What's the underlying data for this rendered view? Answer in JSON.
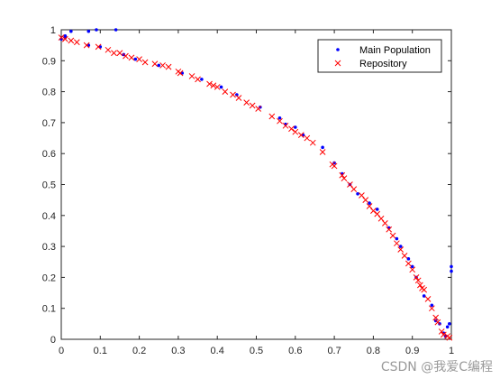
{
  "chart_data": {
    "type": "scatter",
    "title": "",
    "xlabel": "",
    "ylabel": "",
    "xlim": [
      0,
      1
    ],
    "ylim": [
      0,
      1
    ],
    "xticks": [
      "0",
      "0.1",
      "0.2",
      "0.3",
      "0.4",
      "0.5",
      "0.6",
      "0.7",
      "0.8",
      "0.9",
      "1"
    ],
    "yticks": [
      "0",
      "0.1",
      "0.2",
      "0.3",
      "0.4",
      "0.5",
      "0.6",
      "0.7",
      "0.8",
      "0.9",
      "1"
    ],
    "grid": false,
    "legend_position": "top-right",
    "series": [
      {
        "name": "Main Population",
        "marker": "dot",
        "color": "#0000ff",
        "points": [
          [
            0.0,
            0.97
          ],
          [
            0.01,
            0.98
          ],
          [
            0.025,
            0.995
          ],
          [
            0.07,
            0.995
          ],
          [
            0.09,
            1.0
          ],
          [
            0.14,
            1.0
          ],
          [
            0.01,
            0.975
          ],
          [
            0.07,
            0.95
          ],
          [
            0.1,
            0.945
          ],
          [
            0.16,
            0.92
          ],
          [
            0.19,
            0.905
          ],
          [
            0.25,
            0.885
          ],
          [
            0.31,
            0.86
          ],
          [
            0.36,
            0.84
          ],
          [
            0.41,
            0.815
          ],
          [
            0.45,
            0.79
          ],
          [
            0.51,
            0.75
          ],
          [
            0.56,
            0.715
          ],
          [
            0.575,
            0.695
          ],
          [
            0.6,
            0.685
          ],
          [
            0.62,
            0.66
          ],
          [
            0.67,
            0.62
          ],
          [
            0.7,
            0.57
          ],
          [
            0.72,
            0.535
          ],
          [
            0.74,
            0.5
          ],
          [
            0.76,
            0.47
          ],
          [
            0.79,
            0.44
          ],
          [
            0.81,
            0.42
          ],
          [
            0.84,
            0.36
          ],
          [
            0.86,
            0.325
          ],
          [
            0.87,
            0.3
          ],
          [
            0.89,
            0.26
          ],
          [
            0.9,
            0.235
          ],
          [
            0.91,
            0.2
          ],
          [
            0.93,
            0.14
          ],
          [
            0.95,
            0.11
          ],
          [
            0.96,
            0.06
          ],
          [
            0.97,
            0.05
          ],
          [
            0.98,
            0.02
          ],
          [
            0.985,
            0.01
          ],
          [
            0.99,
            0.04
          ],
          [
            0.995,
            0.05
          ],
          [
            1.0,
            0.22
          ],
          [
            1.0,
            0.235
          ]
        ]
      },
      {
        "name": "Repository",
        "marker": "x",
        "color": "#ff0000",
        "points": [
          [
            0.0,
            0.975
          ],
          [
            0.01,
            0.97
          ],
          [
            0.025,
            0.965
          ],
          [
            0.04,
            0.96
          ],
          [
            0.065,
            0.95
          ],
          [
            0.095,
            0.945
          ],
          [
            0.12,
            0.935
          ],
          [
            0.135,
            0.925
          ],
          [
            0.15,
            0.925
          ],
          [
            0.165,
            0.915
          ],
          [
            0.18,
            0.91
          ],
          [
            0.2,
            0.905
          ],
          [
            0.215,
            0.895
          ],
          [
            0.24,
            0.89
          ],
          [
            0.26,
            0.885
          ],
          [
            0.275,
            0.88
          ],
          [
            0.3,
            0.865
          ],
          [
            0.305,
            0.86
          ],
          [
            0.335,
            0.85
          ],
          [
            0.35,
            0.84
          ],
          [
            0.38,
            0.825
          ],
          [
            0.39,
            0.82
          ],
          [
            0.4,
            0.815
          ],
          [
            0.42,
            0.8
          ],
          [
            0.44,
            0.79
          ],
          [
            0.455,
            0.78
          ],
          [
            0.475,
            0.765
          ],
          [
            0.49,
            0.755
          ],
          [
            0.505,
            0.745
          ],
          [
            0.54,
            0.72
          ],
          [
            0.56,
            0.705
          ],
          [
            0.575,
            0.69
          ],
          [
            0.59,
            0.68
          ],
          [
            0.6,
            0.67
          ],
          [
            0.615,
            0.66
          ],
          [
            0.63,
            0.65
          ],
          [
            0.645,
            0.635
          ],
          [
            0.67,
            0.605
          ],
          [
            0.695,
            0.565
          ],
          [
            0.7,
            0.56
          ],
          [
            0.72,
            0.53
          ],
          [
            0.725,
            0.52
          ],
          [
            0.74,
            0.5
          ],
          [
            0.75,
            0.485
          ],
          [
            0.77,
            0.465
          ],
          [
            0.78,
            0.45
          ],
          [
            0.79,
            0.43
          ],
          [
            0.8,
            0.415
          ],
          [
            0.81,
            0.405
          ],
          [
            0.82,
            0.39
          ],
          [
            0.83,
            0.375
          ],
          [
            0.84,
            0.355
          ],
          [
            0.85,
            0.335
          ],
          [
            0.86,
            0.31
          ],
          [
            0.87,
            0.29
          ],
          [
            0.88,
            0.27
          ],
          [
            0.89,
            0.245
          ],
          [
            0.9,
            0.225
          ],
          [
            0.91,
            0.2
          ],
          [
            0.915,
            0.19
          ],
          [
            0.92,
            0.175
          ],
          [
            0.925,
            0.165
          ],
          [
            0.93,
            0.16
          ],
          [
            0.94,
            0.13
          ],
          [
            0.95,
            0.1
          ],
          [
            0.96,
            0.07
          ],
          [
            0.965,
            0.055
          ],
          [
            0.975,
            0.025
          ],
          [
            0.98,
            0.015
          ],
          [
            0.99,
            0.01
          ],
          [
            0.995,
            0.005
          ]
        ]
      }
    ]
  },
  "watermark": "CSDN @我爱C编程"
}
